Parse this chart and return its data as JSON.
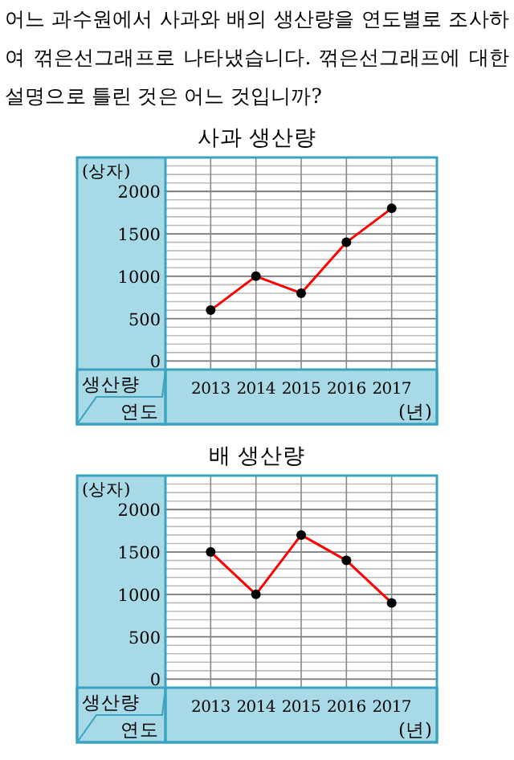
{
  "chart_data": [
    {
      "type": "line",
      "title": "사과 생산량",
      "ylabel": "(상자)",
      "xlabel": "연도",
      "annotations": [
        "어느 과수원에서 사과와 배의 생산량을 연도별로 조사하여 꺾은선그래프로 나타냈습니다. 꺾은선그래프에 대한 설명으로 틀린 것은 어느 것입니까?",
        "생산량",
        "(년)"
      ],
      "categories": [
        "2013",
        "2014",
        "2015",
        "2016",
        "2017"
      ],
      "series": [
        {
          "color": "#ff0000",
          "values": [
            600,
            1000,
            800,
            1400,
            1800
          ]
        }
      ],
      "ylim": [
        -100,
        2400
      ],
      "yticks": [
        0,
        500,
        1000,
        1500,
        2000
      ],
      "grid": true,
      "marker": "circle"
    },
    {
      "type": "line",
      "title": "배 생산량",
      "ylabel": "(상자)",
      "xlabel": "연도",
      "annotations": [
        "생산량",
        "(년)"
      ],
      "categories": [
        "2013",
        "2014",
        "2015",
        "2016",
        "2017"
      ],
      "series": [
        {
          "color": "#ff0000",
          "values": [
            1500,
            1000,
            1700,
            1400,
            900
          ]
        }
      ],
      "ylim": [
        -100,
        2400
      ],
      "yticks": [
        0,
        500,
        1000,
        1500,
        2000
      ],
      "grid": true,
      "marker": "circle"
    }
  ]
}
